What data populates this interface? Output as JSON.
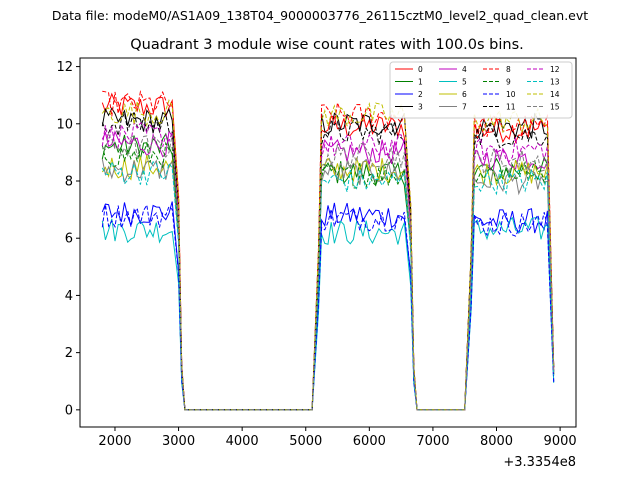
{
  "header": {
    "data_file": "Data file: modeM0/AS1A09_138T04_9000003776_26115cztM0_level2_quad_clean.evt"
  },
  "chart_data": {
    "type": "line",
    "title": "Quadrant 3 module wise count rates with 100.0s bins.",
    "xlabel": "",
    "ylabel": "",
    "x_offset_label": "+3.3354e8",
    "xlim": [
      1450,
      9250
    ],
    "ylim": [
      -0.6,
      12.3
    ],
    "xticks": [
      2000,
      3000,
      4000,
      5000,
      6000,
      7000,
      8000,
      9000
    ],
    "xtick_labels": [
      "2000",
      "3000",
      "4000",
      "5000",
      "6000",
      "7000",
      "8000",
      "9000"
    ],
    "yticks": [
      0,
      2,
      4,
      6,
      8,
      10,
      12
    ],
    "ytick_labels": [
      "0",
      "2",
      "4",
      "6",
      "8",
      "10",
      "12"
    ],
    "legend_position": "top-right",
    "gti_segments": [
      {
        "start": 1800,
        "end": 2900,
        "tail": [
          3000,
          3050,
          3100
        ]
      },
      {
        "start": 5250,
        "end": 6550,
        "tail": [
          6650,
          6700,
          6750
        ]
      },
      {
        "start": 7650,
        "end": 8800,
        "tail": [
          8900
        ]
      }
    ],
    "gap_ranges": [
      {
        "from": 3100,
        "to": 5100,
        "rise_start": 5200
      },
      {
        "from": 6750,
        "to": 7500,
        "rise_start": 7600
      }
    ],
    "series": [
      {
        "name": "0",
        "color": "#ff0000",
        "dash": "solid",
        "levels": [
          10.6,
          9.9,
          9.8
        ]
      },
      {
        "name": "1",
        "color": "#008000",
        "dash": "solid",
        "levels": [
          9.2,
          8.3,
          8.4
        ]
      },
      {
        "name": "2",
        "color": "#0000ff",
        "dash": "solid",
        "levels": [
          6.9,
          6.8,
          6.6
        ]
      },
      {
        "name": "3",
        "color": "#000000",
        "dash": "solid",
        "levels": [
          10.1,
          10.0,
          9.9
        ]
      },
      {
        "name": "4",
        "color": "#bf00bf",
        "dash": "solid",
        "levels": [
          9.3,
          9.0,
          8.8
        ]
      },
      {
        "name": "5",
        "color": "#00bfbf",
        "dash": "solid",
        "levels": [
          6.3,
          6.2,
          6.3
        ]
      },
      {
        "name": "6",
        "color": "#bfbf00",
        "dash": "solid",
        "levels": [
          8.5,
          8.4,
          8.3
        ]
      },
      {
        "name": "7",
        "color": "#808080",
        "dash": "solid",
        "levels": [
          8.4,
          8.3,
          8.0
        ]
      },
      {
        "name": "8",
        "color": "#ff0000",
        "dash": "dashed",
        "levels": [
          10.7,
          10.3,
          9.9
        ]
      },
      {
        "name": "9",
        "color": "#008000",
        "dash": "dashed",
        "levels": [
          8.9,
          8.2,
          8.3
        ]
      },
      {
        "name": "10",
        "color": "#0000ff",
        "dash": "dashed",
        "levels": [
          6.8,
          6.7,
          6.5
        ]
      },
      {
        "name": "11",
        "color": "#000000",
        "dash": "dashed",
        "levels": [
          10.0,
          9.7,
          9.6
        ]
      },
      {
        "name": "12",
        "color": "#bf00bf",
        "dash": "dashed",
        "levels": [
          9.6,
          9.2,
          9.1
        ]
      },
      {
        "name": "13",
        "color": "#00bfbf",
        "dash": "dashed",
        "levels": [
          8.3,
          8.0,
          8.0
        ]
      },
      {
        "name": "14",
        "color": "#bfbf00",
        "dash": "dashed",
        "levels": [
          10.4,
          10.3,
          10.1
        ]
      },
      {
        "name": "15",
        "color": "#808080",
        "dash": "dashed",
        "levels": [
          9.2,
          8.9,
          8.7
        ]
      }
    ]
  }
}
